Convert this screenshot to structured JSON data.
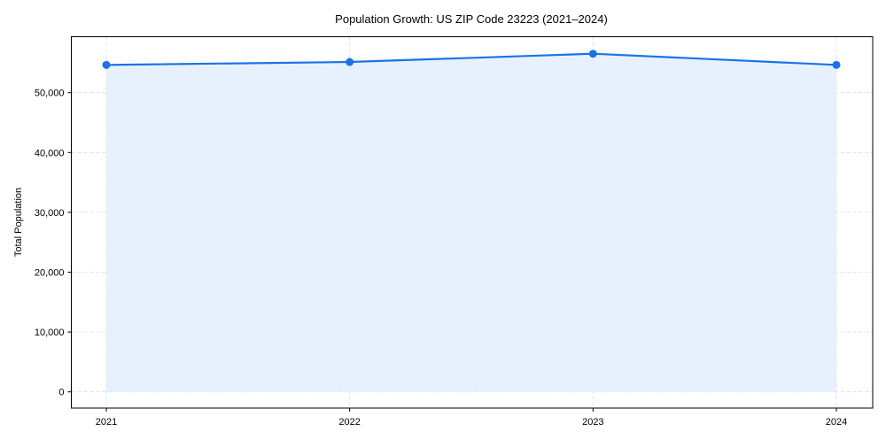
{
  "chart_data": {
    "type": "line",
    "title": "Population Growth: US ZIP Code 23223 (2021–2024)",
    "xlabel": "",
    "ylabel": "Total Population",
    "categories": [
      "2021",
      "2022",
      "2023",
      "2024"
    ],
    "series": [
      {
        "name": "Total Population",
        "values": [
          54640,
          55130,
          56510,
          54640
        ],
        "color": "#1a73e8",
        "fill": "#e6f0fd",
        "marker": "circle"
      }
    ],
    "ylim": [
      -2800,
      58900
    ],
    "yticks": [
      0,
      10000,
      20000,
      30000,
      40000,
      50000
    ],
    "ytick_labels": [
      "0",
      "10,000",
      "20,000",
      "30,000",
      "40,000",
      "50,000"
    ],
    "grid": true,
    "legend": null
  },
  "colors": {
    "line": "#1a73e8",
    "fill": "#e6f0fd",
    "grid": "#d9d9d9",
    "axis": "#000000"
  }
}
